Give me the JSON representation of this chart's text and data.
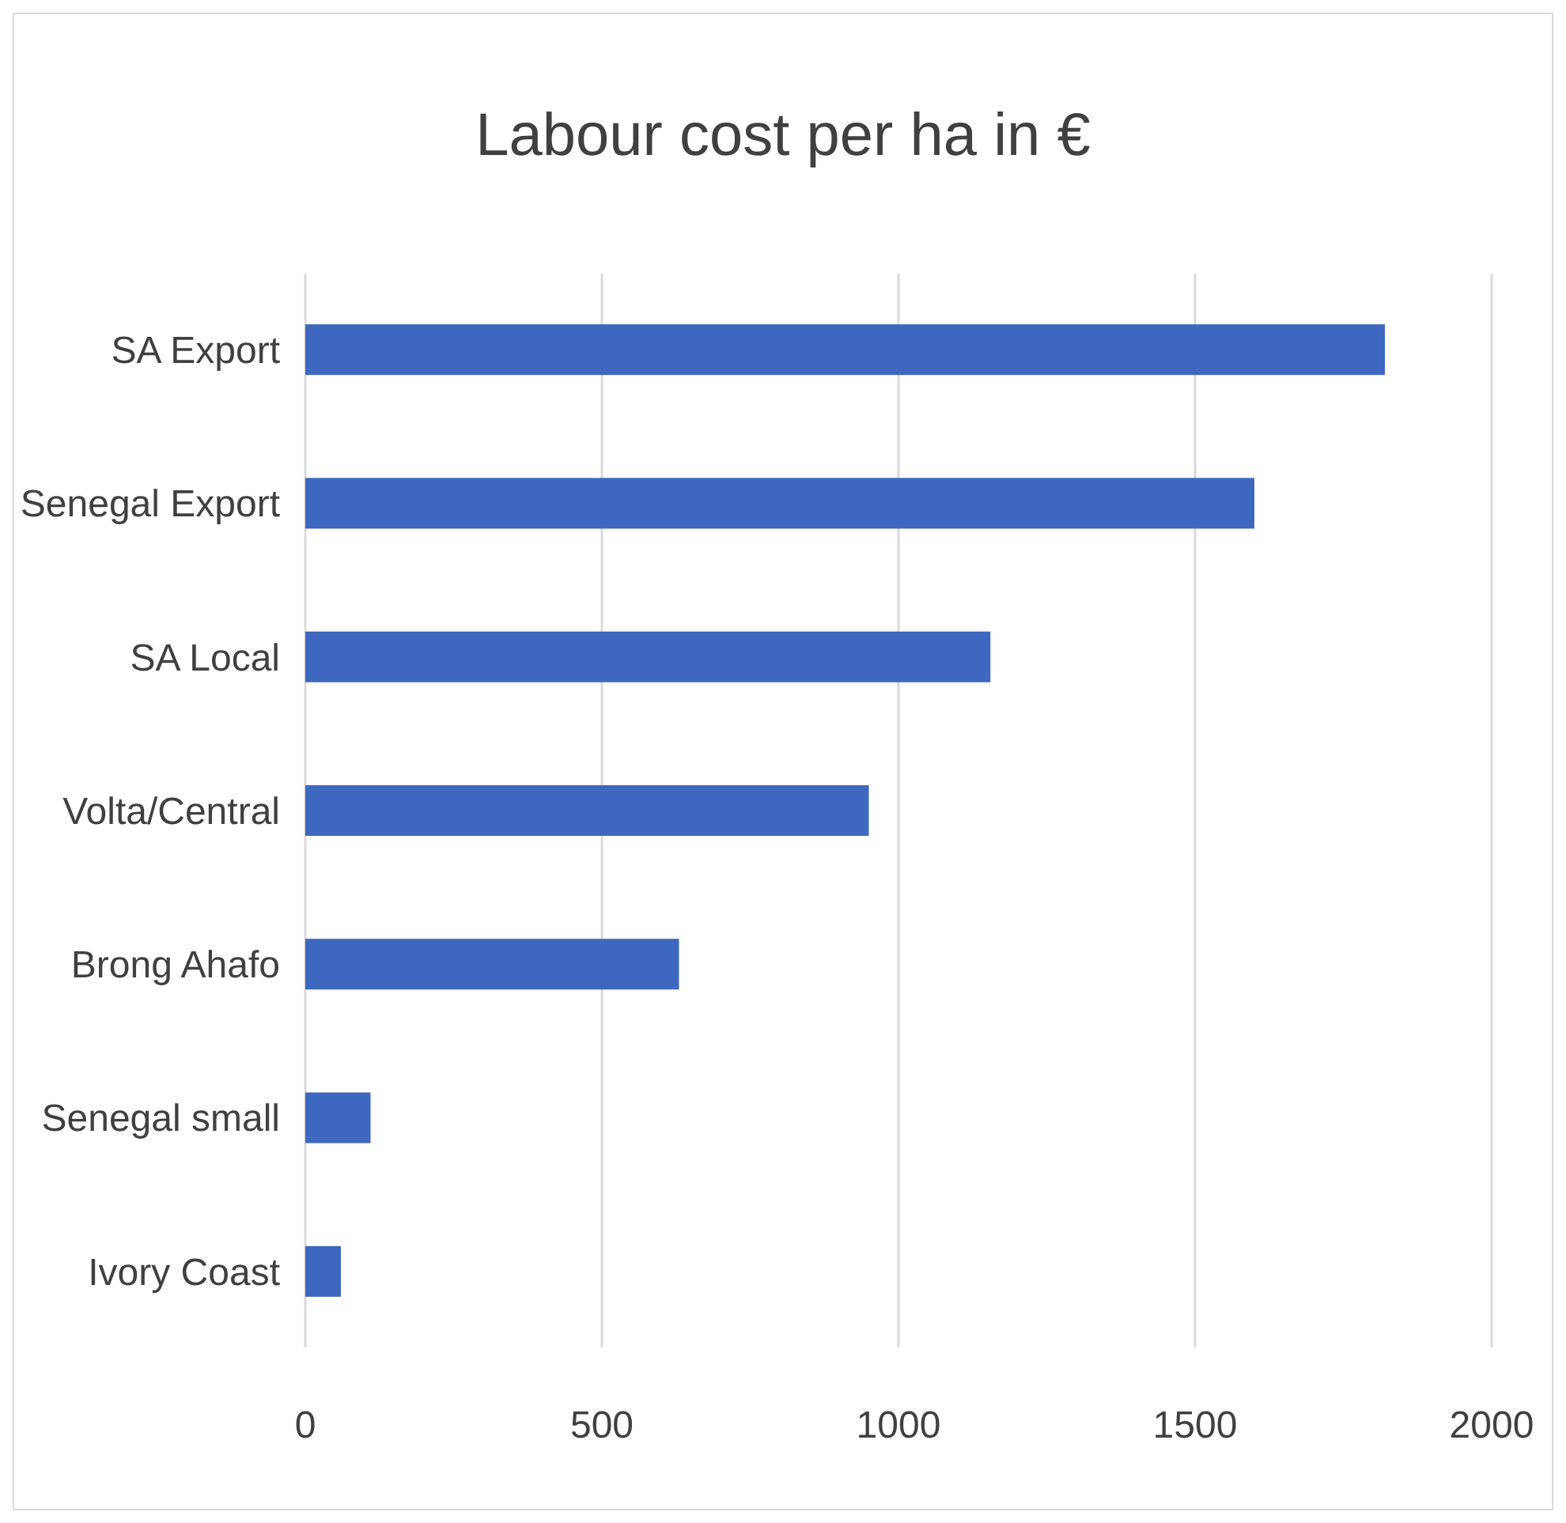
{
  "chart_data": {
    "type": "bar",
    "orientation": "horizontal",
    "title": "Labour cost per ha in €",
    "categories": [
      "SA Export",
      "Senegal Export",
      "SA Local",
      "Volta/Central",
      "Brong Ahafo",
      "Senegal small",
      "Ivory Coast"
    ],
    "values": [
      1820,
      1600,
      1155,
      950,
      630,
      110,
      60
    ],
    "color": "#3e68bf",
    "xlim": [
      0,
      2000
    ],
    "xticks": [
      0,
      500,
      1000,
      1500,
      2000
    ],
    "grid": "x"
  }
}
